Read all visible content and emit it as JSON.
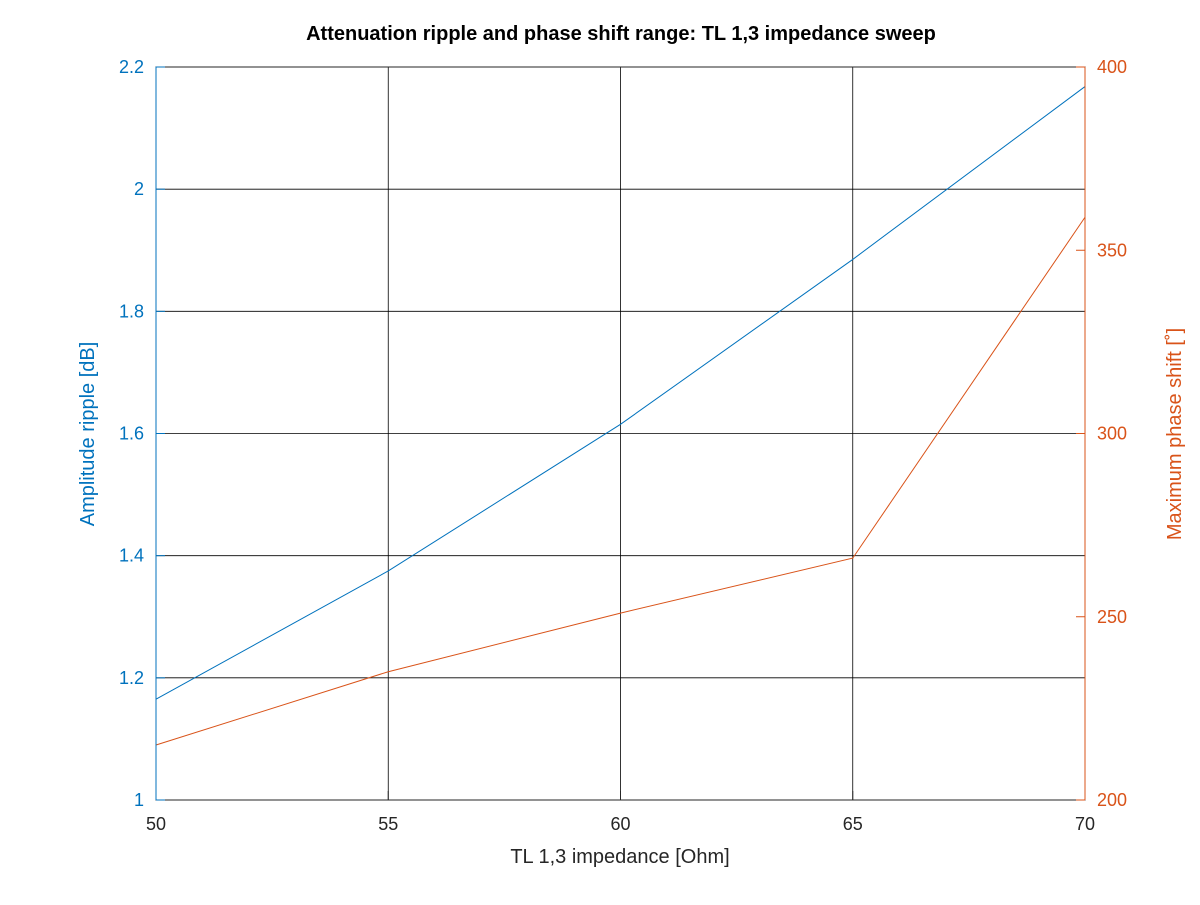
{
  "chart_data": {
    "type": "line",
    "title": "Attenuation ripple and phase shift range: TL 1,3 impedance sweep",
    "xlabel": "TL 1,3 impedance [Ohm]",
    "ylabel_left": "Amplitude ripple [dB]",
    "ylabel_right": "Maximum phase shift [˚]",
    "xlim": [
      50,
      70
    ],
    "ylim_left": [
      1,
      2.2
    ],
    "ylim_right": [
      200,
      400
    ],
    "x_ticks": [
      "50",
      "55",
      "60",
      "65",
      "70"
    ],
    "y_ticks_left": [
      "1",
      "1.2",
      "1.4",
      "1.6",
      "1.8",
      "2",
      "2.2"
    ],
    "y_ticks_right": [
      "200",
      "250",
      "300",
      "350",
      "400"
    ],
    "grid": true,
    "x": [
      50,
      55,
      60,
      65,
      70
    ],
    "series": [
      {
        "axis": "left",
        "color": "#0072bd",
        "values": [
          1.165,
          1.375,
          1.615,
          1.885,
          2.168
        ]
      },
      {
        "axis": "right",
        "color": "#d95319",
        "values": [
          215,
          235,
          251,
          266,
          359
        ]
      }
    ],
    "colors": {
      "left_axis": "#0072bd",
      "right_axis": "#d95319",
      "grid": "#000000",
      "text": "#262626"
    }
  }
}
